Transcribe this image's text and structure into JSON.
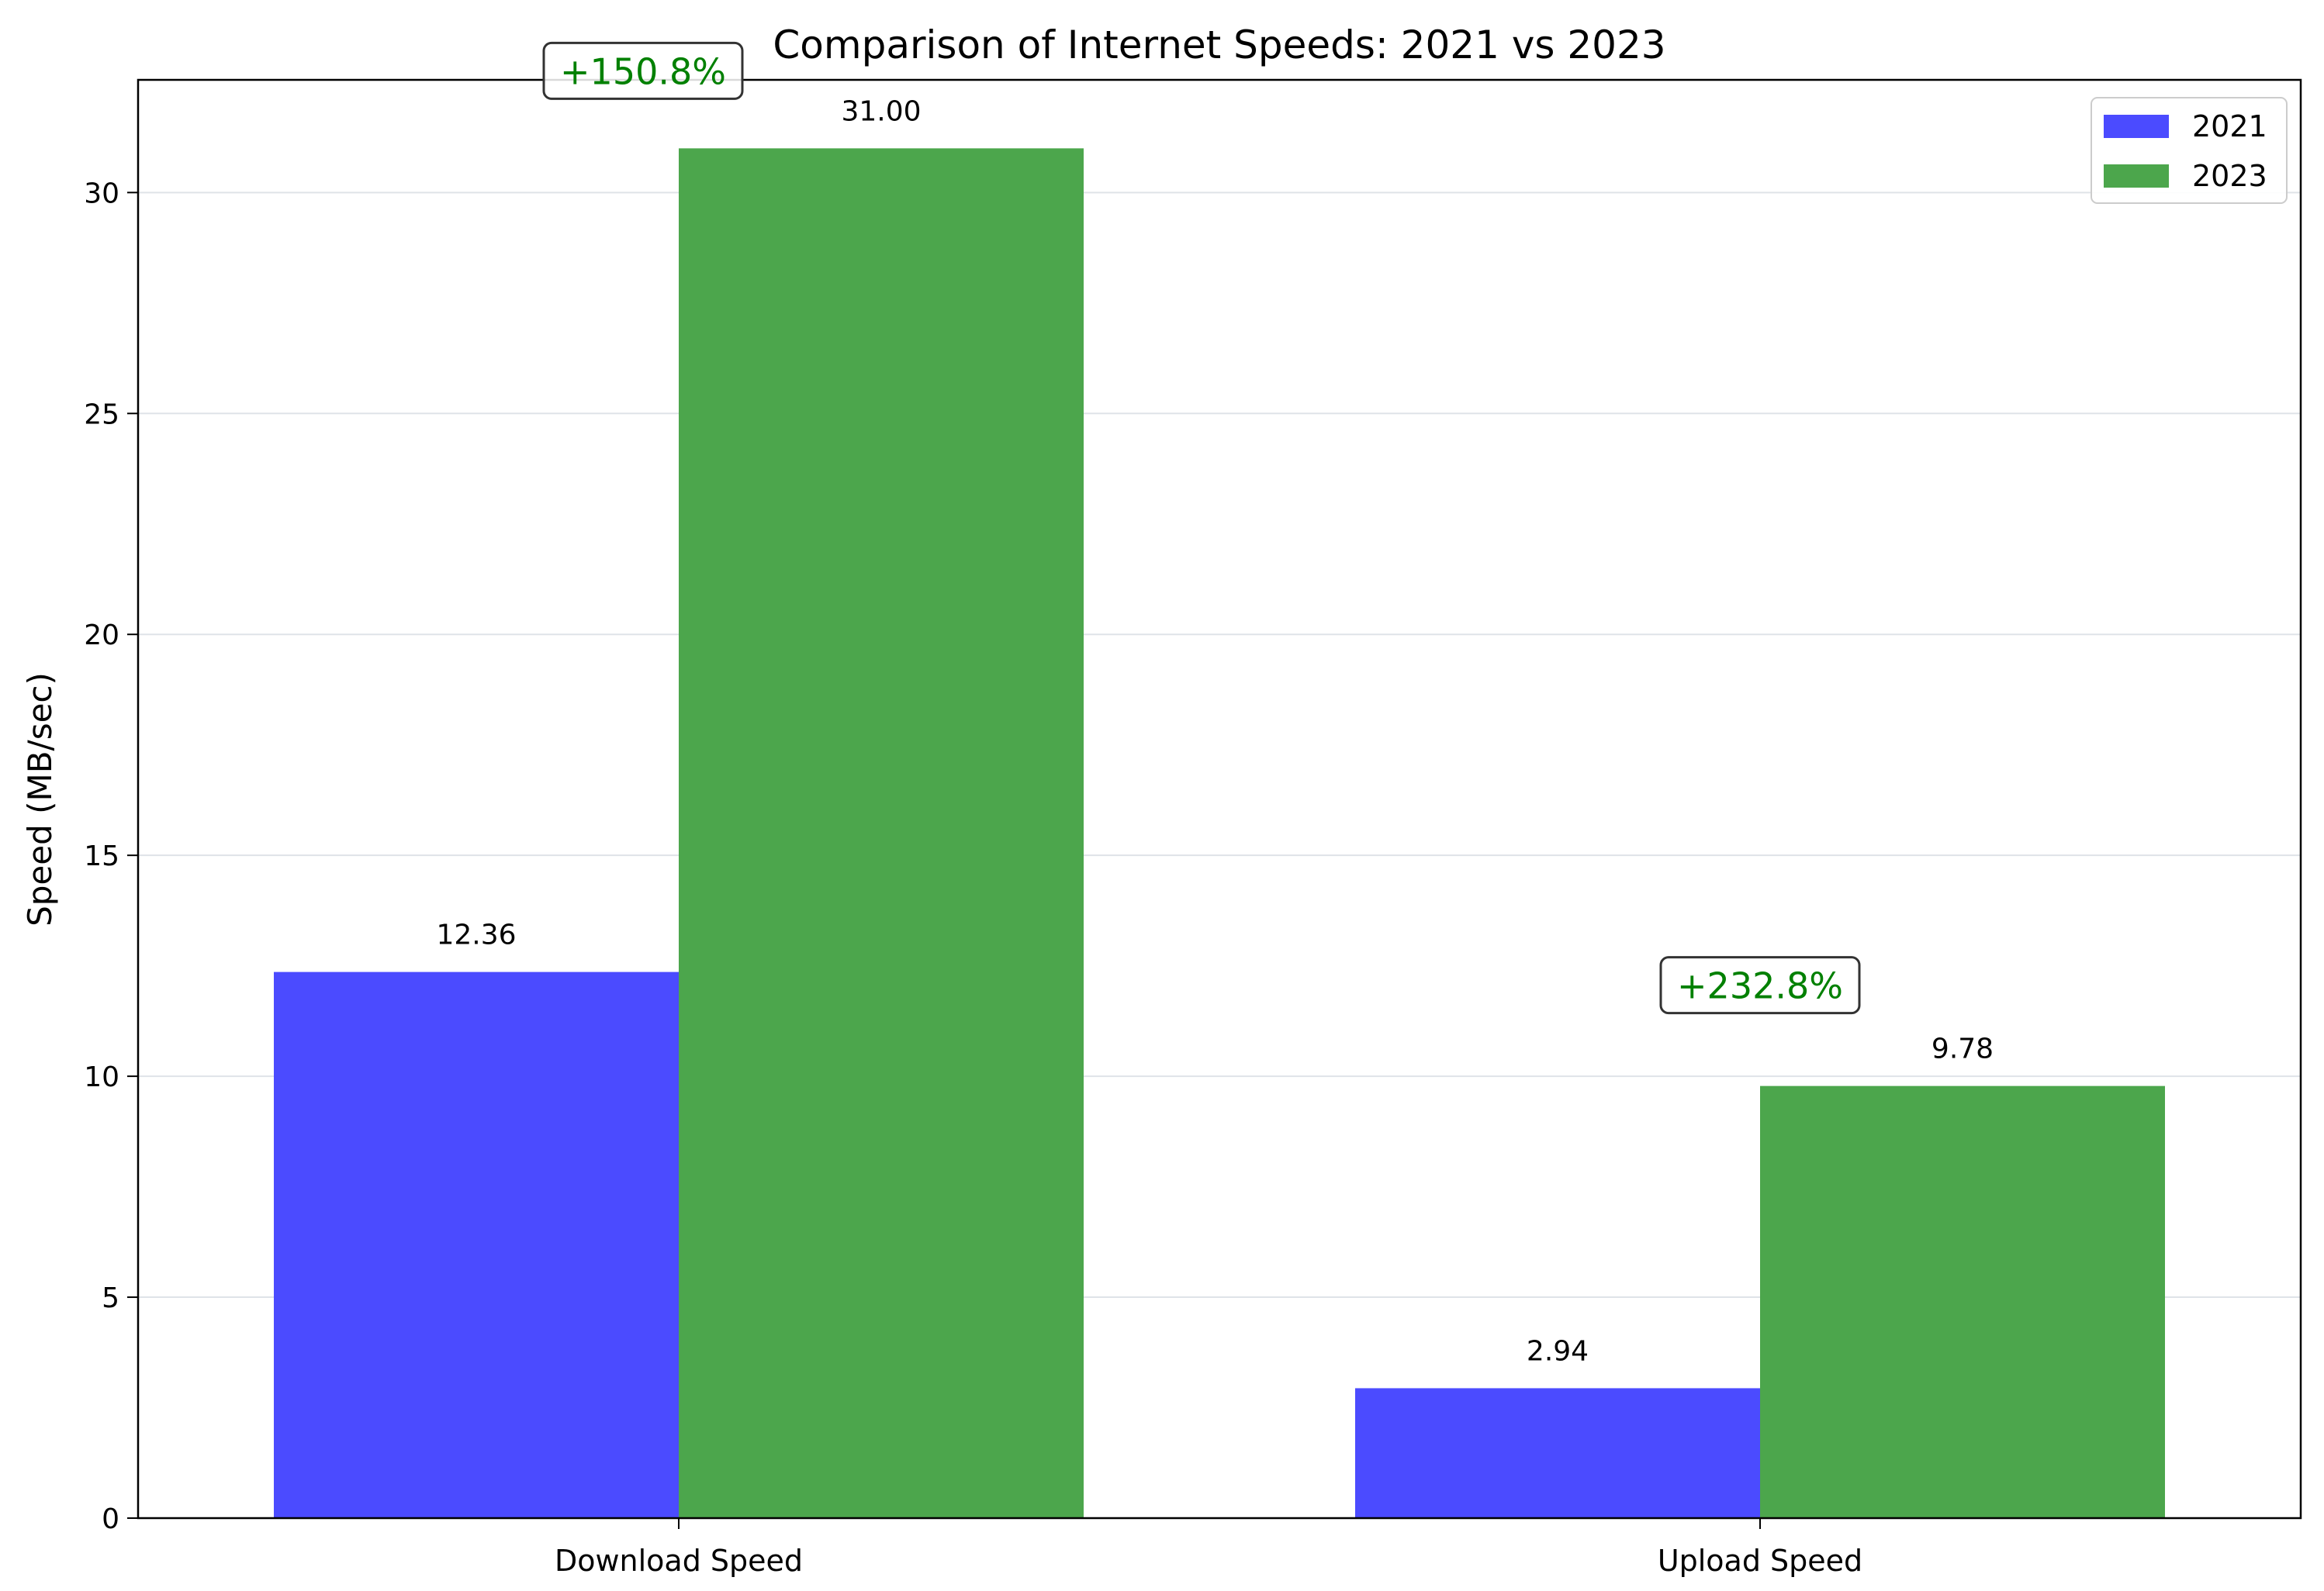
{
  "chart_data": {
    "type": "bar",
    "title": "Comparison of Internet Speeds: 2021 vs 2023",
    "xlabel": "",
    "ylabel": "Speed (MB/sec)",
    "categories": [
      "Download Speed",
      "Upload Speed"
    ],
    "series": [
      {
        "name": "2021",
        "values": [
          12.36,
          2.94
        ],
        "color": "#4b4bff",
        "value_labels": [
          "12.36",
          "2.94"
        ]
      },
      {
        "name": "2023",
        "values": [
          31.0,
          9.78
        ],
        "color": "#4ca64c",
        "value_labels": [
          "31.00",
          "9.78"
        ]
      }
    ],
    "annotations": [
      "+150.8%",
      "+232.8%"
    ],
    "annotation_color": "#008000",
    "ylim": [
      0,
      32.55
    ],
    "yticks": [
      0,
      5,
      10,
      15,
      20,
      25,
      30
    ],
    "ytick_labels": [
      "0",
      "5",
      "10",
      "15",
      "20",
      "25",
      "30"
    ],
    "grid": "y",
    "legend_position": "top-right"
  }
}
